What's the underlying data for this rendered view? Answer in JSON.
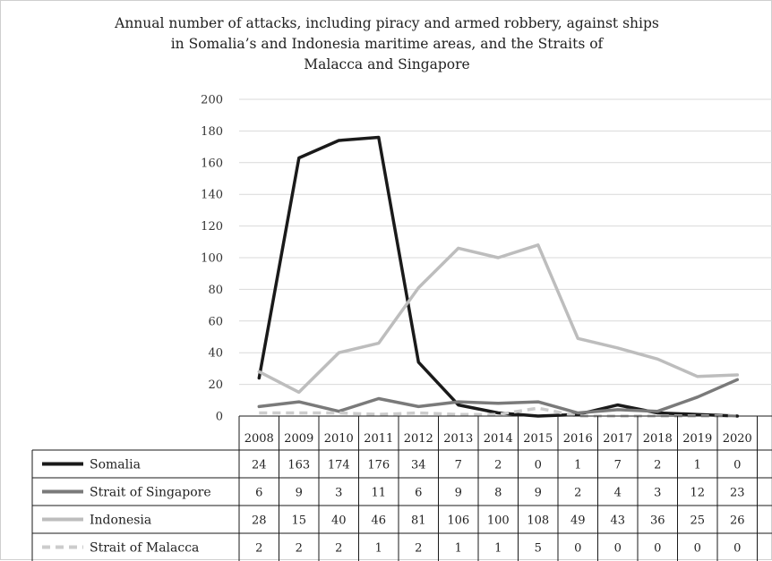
{
  "chart_data": {
    "type": "line",
    "title_lines": [
      "Annual number of attacks, including piracy and armed robbery, against ships",
      "in Somalia’s and Indonesia maritime areas, and the Straits of",
      "Malacca and Singapore"
    ],
    "xlabel": "",
    "ylabel": "",
    "ylim": [
      0,
      200
    ],
    "y_ticks": [
      0,
      20,
      40,
      60,
      80,
      100,
      120,
      140,
      160,
      180,
      200
    ],
    "grid": true,
    "legend_placement": "data-table-left",
    "categories": [
      "2008",
      "2009",
      "2010",
      "2011",
      "2012",
      "2013",
      "2014",
      "2015",
      "2016",
      "2017",
      "2018",
      "2019",
      "2020"
    ],
    "series": [
      {
        "name": "Somalia",
        "color": "#1a1a1a",
        "dash": "solid",
        "values": [
          24,
          163,
          174,
          176,
          34,
          7,
          2,
          0,
          1,
          7,
          2,
          1,
          0
        ]
      },
      {
        "name": "Strait of Singapore",
        "color": "#7a7a7a",
        "dash": "solid",
        "values": [
          6,
          9,
          3,
          11,
          6,
          9,
          8,
          9,
          2,
          4,
          3,
          12,
          23
        ]
      },
      {
        "name": "Indonesia",
        "color": "#bdbdbd",
        "dash": "solid",
        "values": [
          28,
          15,
          40,
          46,
          81,
          106,
          100,
          108,
          49,
          43,
          36,
          25,
          26
        ]
      },
      {
        "name": "Strait of Malacca",
        "color": "#cccccc",
        "dash": "dashed",
        "values": [
          2,
          2,
          2,
          1,
          2,
          1,
          1,
          5,
          0,
          0,
          0,
          0,
          0
        ]
      }
    ]
  }
}
